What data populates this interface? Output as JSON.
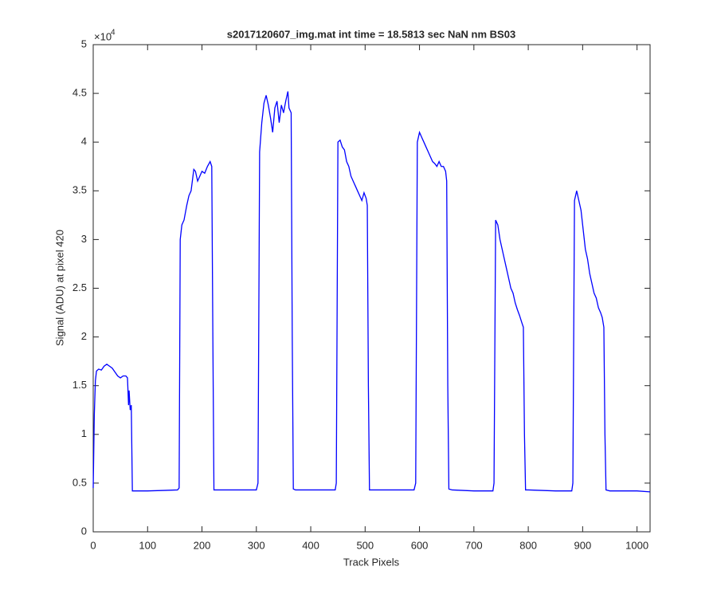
{
  "chart_data": {
    "type": "line",
    "title": "s2017120607_img.mat int time = 18.5813 sec  NaN nm BS03",
    "xlabel": "Track Pixels",
    "ylabel": "Signal (ADU) at pixel 420",
    "y_scale_base": "×10",
    "y_scale_power": "4",
    "xlim": [
      0,
      1024
    ],
    "xticks": [
      0,
      100,
      200,
      300,
      400,
      500,
      600,
      700,
      800,
      900,
      1000
    ],
    "ylim": [
      0,
      5
    ],
    "yticks": [
      0,
      0.5,
      1,
      1.5,
      2,
      2.5,
      3,
      3.5,
      4,
      4.5,
      5
    ],
    "grid": false,
    "series": [
      {
        "color": "#0000ff",
        "x": [
          0,
          2,
          4,
          6,
          10,
          15,
          20,
          25,
          30,
          35,
          40,
          45,
          50,
          55,
          60,
          63,
          65,
          66,
          68,
          70,
          72,
          75,
          100,
          130,
          155,
          158,
          160,
          163,
          167,
          172,
          176,
          180,
          185,
          188,
          192,
          196,
          200,
          205,
          210,
          215,
          218,
          220,
          222,
          225,
          260,
          300,
          303,
          306,
          310,
          314,
          318,
          322,
          326,
          330,
          334,
          338,
          342,
          346,
          350,
          354,
          358,
          360,
          364,
          366,
          368,
          372,
          410,
          445,
          447,
          450,
          454,
          458,
          462,
          466,
          470,
          474,
          478,
          482,
          486,
          490,
          494,
          498,
          502,
          504,
          506,
          508,
          512,
          550,
          590,
          593,
          596,
          600,
          604,
          608,
          612,
          616,
          620,
          624,
          628,
          632,
          636,
          640,
          644,
          648,
          650,
          652,
          654,
          660,
          700,
          735,
          737,
          740,
          744,
          748,
          752,
          756,
          760,
          764,
          768,
          772,
          776,
          780,
          784,
          788,
          791,
          793,
          795,
          800,
          850,
          880,
          882,
          885,
          889,
          893,
          897,
          901,
          905,
          909,
          913,
          917,
          921,
          925,
          929,
          933,
          936,
          939,
          941,
          943,
          950,
          1000,
          1024
        ],
        "values": [
          0.45,
          1.2,
          1.55,
          1.65,
          1.67,
          1.66,
          1.7,
          1.72,
          1.7,
          1.68,
          1.64,
          1.6,
          1.58,
          1.6,
          1.6,
          1.58,
          1.3,
          1.45,
          1.25,
          1.3,
          0.42,
          0.42,
          0.42,
          0.425,
          0.43,
          0.45,
          3.0,
          3.15,
          3.2,
          3.35,
          3.45,
          3.5,
          3.72,
          3.7,
          3.6,
          3.65,
          3.7,
          3.68,
          3.75,
          3.8,
          3.75,
          2.0,
          0.43,
          0.43,
          0.43,
          0.43,
          0.5,
          3.9,
          4.2,
          4.4,
          4.48,
          4.38,
          4.25,
          4.1,
          4.35,
          4.42,
          4.2,
          4.38,
          4.3,
          4.42,
          4.52,
          4.35,
          4.3,
          2.0,
          0.44,
          0.43,
          0.43,
          0.43,
          0.5,
          4.0,
          4.02,
          3.95,
          3.92,
          3.8,
          3.75,
          3.65,
          3.6,
          3.55,
          3.5,
          3.45,
          3.4,
          3.48,
          3.42,
          3.35,
          1.5,
          0.43,
          0.43,
          0.43,
          0.43,
          0.5,
          4.0,
          4.1,
          4.05,
          4.0,
          3.95,
          3.9,
          3.85,
          3.8,
          3.78,
          3.75,
          3.8,
          3.75,
          3.75,
          3.7,
          3.6,
          1.5,
          0.44,
          0.43,
          0.42,
          0.42,
          0.5,
          3.2,
          3.15,
          3.0,
          2.9,
          2.8,
          2.7,
          2.6,
          2.5,
          2.45,
          2.35,
          2.28,
          2.22,
          2.15,
          2.1,
          1.0,
          0.43,
          0.43,
          0.42,
          0.42,
          0.5,
          3.4,
          3.5,
          3.4,
          3.3,
          3.1,
          2.9,
          2.8,
          2.65,
          2.55,
          2.45,
          2.4,
          2.3,
          2.25,
          2.2,
          2.1,
          1.0,
          0.43,
          0.42,
          0.42,
          0.41
        ]
      }
    ]
  }
}
